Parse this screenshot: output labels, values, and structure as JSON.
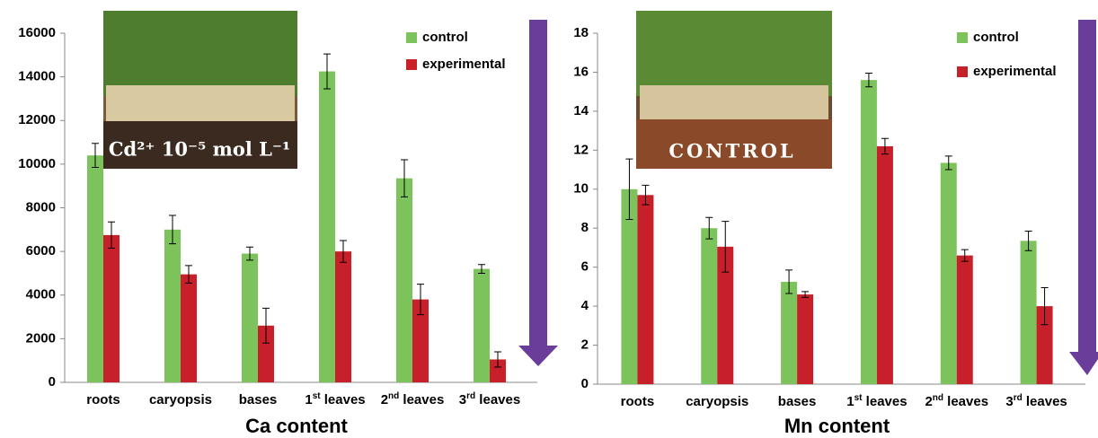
{
  "chart_data": [
    {
      "type": "bar",
      "xlabel": "Ca content",
      "categories": [
        "roots",
        "caryopsis",
        "bases",
        "1st leaves",
        "2nd leaves",
        "3rd leaves"
      ],
      "series": [
        {
          "name": "control",
          "color": "#7dc35b",
          "values": [
            10400,
            7000,
            5900,
            14250,
            9350,
            5200
          ],
          "errors": [
            550,
            650,
            300,
            800,
            850,
            200
          ]
        },
        {
          "name": "experimental",
          "color": "#c8202a",
          "values": [
            6750,
            4950,
            2600,
            6000,
            3800,
            1050
          ],
          "errors": [
            600,
            400,
            800,
            500,
            700,
            350
          ]
        }
      ],
      "ylim": [
        0,
        16000
      ],
      "yticks": [
        0,
        2000,
        4000,
        6000,
        8000,
        10000,
        12000,
        14000,
        16000
      ],
      "legend": "upper right",
      "annotation": "Cd²⁺ 10⁻⁵ mol L⁻¹"
    },
    {
      "type": "bar",
      "xlabel": "Mn content",
      "categories": [
        "roots",
        "caryopsis",
        "bases",
        "1st leaves",
        "2nd leaves",
        "3rd leaves"
      ],
      "series": [
        {
          "name": "control",
          "color": "#7dc35b",
          "values": [
            10.0,
            8.0,
            5.25,
            15.6,
            11.35,
            7.35
          ],
          "errors": [
            1.55,
            0.55,
            0.6,
            0.35,
            0.35,
            0.5
          ]
        },
        {
          "name": "experimental",
          "color": "#c8202a",
          "values": [
            9.7,
            7.05,
            4.6,
            12.2,
            6.6,
            4.0
          ],
          "errors": [
            0.5,
            1.3,
            0.15,
            0.4,
            0.3,
            0.95
          ]
        }
      ],
      "ylim": [
        0,
        18
      ],
      "yticks": [
        0,
        2,
        4,
        6,
        8,
        10,
        12,
        14,
        16,
        18
      ],
      "legend": "upper right",
      "annotation": "CONTROL"
    }
  ]
}
